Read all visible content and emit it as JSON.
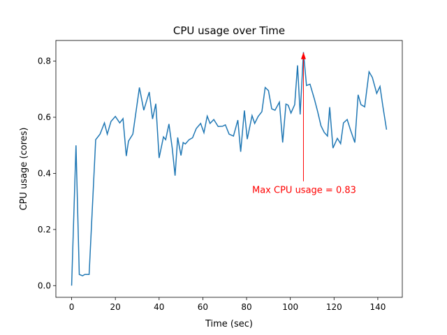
{
  "chart_data": {
    "type": "line",
    "title": "CPU usage over Time",
    "x_label": "Time (sec)",
    "y_label": "CPU usage (cores)",
    "color": "#1f77b4",
    "x": [
      0,
      2,
      3.5,
      5,
      6,
      8,
      11,
      13,
      15,
      16.3,
      18,
      20,
      22,
      23.5,
      25,
      26,
      28,
      31,
      33,
      35.5,
      37,
      38.5,
      40,
      42,
      43,
      44.5,
      46,
      47.3,
      48.5,
      50,
      51,
      52,
      53.7,
      55.3,
      57,
      59,
      60.5,
      62,
      63.3,
      65,
      67,
      69,
      70.3,
      72,
      74,
      76,
      77.3,
      79,
      80.3,
      82.5,
      83.7,
      85.3,
      87,
      88.5,
      90,
      91.5,
      93,
      95,
      96.5,
      98,
      99,
      100.3,
      102,
      103.3,
      104.5,
      106,
      107.4,
      109,
      111,
      112.5,
      114,
      115.5,
      117,
      118,
      119.5,
      121.5,
      123,
      124.3,
      126,
      127.5,
      129.5,
      131,
      132.3,
      134,
      136,
      137.5,
      139.5,
      141,
      142.3,
      144
    ],
    "values": [
      0,
      0.5,
      0.04,
      0.035,
      0.04,
      0.04,
      0.52,
      0.54,
      0.58,
      0.54,
      0.585,
      0.603,
      0.58,
      0.595,
      0.462,
      0.515,
      0.54,
      0.706,
      0.625,
      0.69,
      0.594,
      0.648,
      0.455,
      0.53,
      0.52,
      0.576,
      0.49,
      0.392,
      0.528,
      0.464,
      0.51,
      0.505,
      0.52,
      0.527,
      0.56,
      0.578,
      0.545,
      0.604,
      0.578,
      0.592,
      0.567,
      0.568,
      0.573,
      0.54,
      0.533,
      0.59,
      0.477,
      0.624,
      0.522,
      0.606,
      0.578,
      0.603,
      0.62,
      0.706,
      0.695,
      0.63,
      0.625,
      0.654,
      0.51,
      0.647,
      0.643,
      0.615,
      0.645,
      0.785,
      0.61,
      0.832,
      0.713,
      0.718,
      0.665,
      0.62,
      0.57,
      0.546,
      0.533,
      0.636,
      0.49,
      0.525,
      0.506,
      0.58,
      0.592,
      0.555,
      0.51,
      0.68,
      0.645,
      0.637,
      0.762,
      0.742,
      0.685,
      0.71,
      0.64,
      0.556
    ],
    "xlim": [
      -7.2,
      151.2
    ],
    "ylim": [
      -0.0416,
      0.8736
    ],
    "xticks": [
      0,
      20,
      40,
      60,
      80,
      100,
      120,
      140
    ],
    "yticks": [
      {
        "value": 0,
        "label": "0.0"
      },
      {
        "value": 0.2,
        "label": "0.2"
      },
      {
        "value": 0.4,
        "label": "0.4"
      },
      {
        "value": 0.6,
        "label": "0.6"
      },
      {
        "value": 0.8,
        "label": "0.8"
      }
    ],
    "annotation": {
      "text": "Max CPU usage = 0.83",
      "x": 106,
      "y": 0.832,
      "color": "#ff0000"
    }
  }
}
